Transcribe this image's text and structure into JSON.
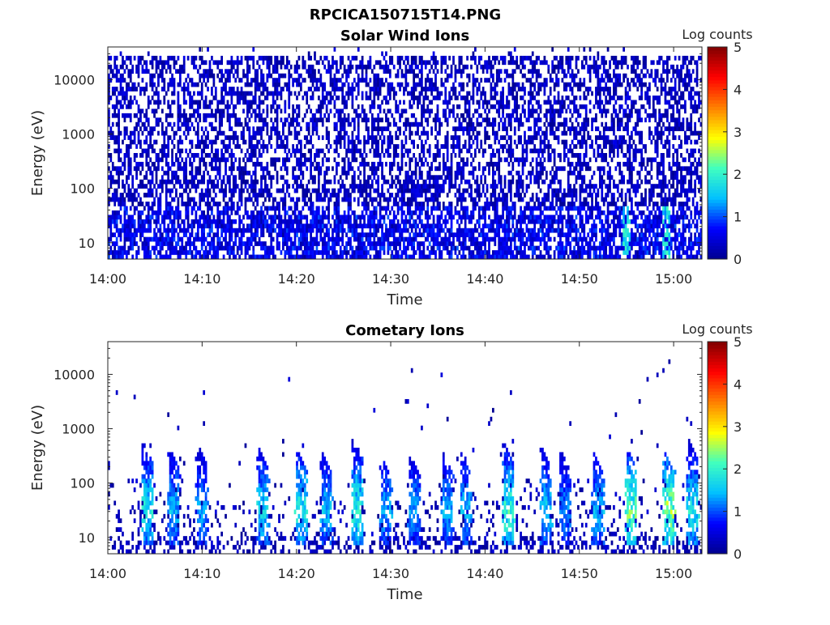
{
  "figure_title": "RPCICA150715T14.PNG",
  "colormap": [
    "#00008f",
    "#0000ff",
    "#00bfff",
    "#40ffbf",
    "#ffff00",
    "#ff8000",
    "#ff0000",
    "#800000"
  ],
  "chart_data": [
    {
      "type": "heatmap",
      "title": "Solar Wind Ions",
      "xlabel": "Time",
      "ylabel": "Energy (eV)",
      "x_ticks": [
        "14:00",
        "14:10",
        "14:20",
        "14:30",
        "14:40",
        "14:50",
        "15:00"
      ],
      "x_range": [
        "14:00",
        "15:03"
      ],
      "y_ticks": [
        "10",
        "100",
        "1000",
        "10000"
      ],
      "y_range": [
        5,
        40000
      ],
      "y_scale": "log",
      "colorbar": {
        "label": "Log counts",
        "ticks": [
          "0",
          "1",
          "2",
          "3",
          "4",
          "5"
        ],
        "range": [
          0,
          5
        ]
      },
      "notes": "Dense low-level counts (log counts mostly 0 to 1) across 5 eV to ~30 keV for the full interval; occasional ~1-2 level pixels near 14:55 and 14:59 at 20-40 eV."
    },
    {
      "type": "heatmap",
      "title": "Cometary Ions",
      "xlabel": "Time",
      "ylabel": "Energy (eV)",
      "x_ticks": [
        "14:00",
        "14:10",
        "14:20",
        "14:30",
        "14:40",
        "14:50",
        "15:00"
      ],
      "x_range": [
        "14:00",
        "15:03"
      ],
      "y_ticks": [
        "10",
        "100",
        "1000",
        "10000"
      ],
      "y_range": [
        5,
        40000
      ],
      "y_scale": "log",
      "colorbar": {
        "label": "Log counts",
        "ticks": [
          "0",
          "1",
          "2",
          "3",
          "4",
          "5"
        ],
        "range": [
          0,
          5
        ]
      },
      "bursts_minutes": [
        4.2,
        7.0,
        10.0,
        16.5,
        20.5,
        23.2,
        26.5,
        29.5,
        32.5,
        36.0,
        38.0,
        42.5,
        46.5,
        48.5,
        52.0,
        55.5,
        59.5,
        62.0
      ],
      "burst_peak_log_counts": [
        2.2,
        1.8,
        1.6,
        2.0,
        2.3,
        1.8,
        2.4,
        1.7,
        1.6,
        1.7,
        1.8,
        2.5,
        1.9,
        1.5,
        1.8,
        2.8,
        3.0,
        2.2
      ],
      "burst_max_energy_eV": [
        400,
        300,
        380,
        300,
        280,
        250,
        450,
        200,
        230,
        250,
        260,
        400,
        300,
        300,
        260,
        300,
        280,
        450
      ],
      "notes": "Vertical bursts between ~8 and ~400 eV; scattered single counts (log counts ~0) up to ~17 keV."
    }
  ]
}
